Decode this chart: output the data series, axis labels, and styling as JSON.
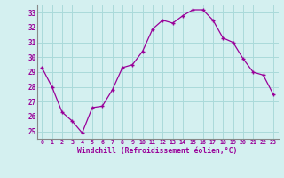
{
  "x": [
    0,
    1,
    2,
    3,
    4,
    5,
    6,
    7,
    8,
    9,
    10,
    11,
    12,
    13,
    14,
    15,
    16,
    17,
    18,
    19,
    20,
    21,
    22,
    23
  ],
  "y": [
    29.3,
    28.0,
    26.3,
    25.7,
    24.9,
    26.6,
    26.7,
    27.8,
    29.3,
    29.5,
    30.4,
    31.9,
    32.5,
    32.3,
    32.8,
    33.2,
    33.2,
    32.5,
    31.3,
    31.0,
    29.9,
    29.0,
    28.8,
    27.5
  ],
  "line_color": "#990099",
  "marker": "+",
  "bg_color": "#d4f0f0",
  "grid_color": "#aadada",
  "xlabel": "Windchill (Refroidissement éolien,°C)",
  "xlim": [
    -0.5,
    23.5
  ],
  "ylim": [
    24.5,
    33.5
  ],
  "yticks": [
    25,
    26,
    27,
    28,
    29,
    30,
    31,
    32,
    33
  ],
  "xticks": [
    0,
    1,
    2,
    3,
    4,
    5,
    6,
    7,
    8,
    9,
    10,
    11,
    12,
    13,
    14,
    15,
    16,
    17,
    18,
    19,
    20,
    21,
    22,
    23
  ],
  "xlabel_color": "#990099",
  "tick_color": "#990099",
  "spine_color": "#990099",
  "axis_line_color": "#888888"
}
